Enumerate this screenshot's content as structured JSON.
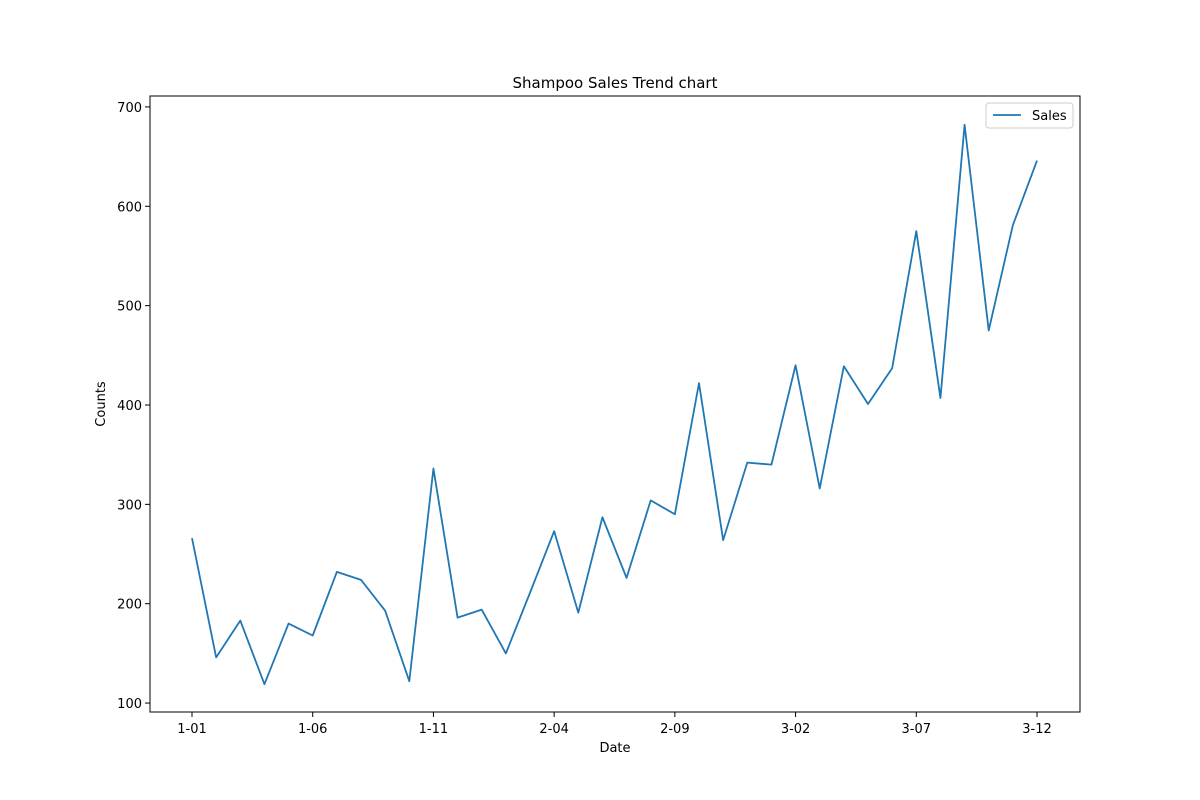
{
  "chart_data": {
    "type": "line",
    "title": "Shampoo Sales Trend chart",
    "xlabel": "Date",
    "ylabel": "Counts",
    "x": [
      "1-01",
      "1-02",
      "1-03",
      "1-04",
      "1-05",
      "1-06",
      "1-07",
      "1-08",
      "1-09",
      "1-10",
      "1-11",
      "1-12",
      "2-01",
      "2-02",
      "2-03",
      "2-04",
      "2-05",
      "2-06",
      "2-07",
      "2-08",
      "2-09",
      "2-10",
      "2-11",
      "2-12",
      "3-01",
      "3-02",
      "3-03",
      "3-04",
      "3-05",
      "3-06",
      "3-07",
      "3-08",
      "3-09",
      "3-10",
      "3-11",
      "3-12"
    ],
    "x_tick_labels": [
      "1-01",
      "1-06",
      "1-11",
      "2-04",
      "2-09",
      "3-02",
      "3-07",
      "3-12"
    ],
    "series": [
      {
        "name": "Sales",
        "color": "#1f77b4",
        "values": [
          266,
          146,
          183,
          119,
          180,
          168,
          232,
          224,
          193,
          122,
          336,
          186,
          194,
          150,
          211,
          273,
          191,
          287,
          226,
          304,
          290,
          422,
          264,
          342,
          340,
          440,
          316,
          439,
          401,
          437,
          575,
          407,
          682,
          475,
          581,
          646
        ]
      }
    ],
    "ylim": [
      91,
      711
    ],
    "yticks": [
      100,
      200,
      300,
      400,
      500,
      600,
      700
    ],
    "grid": false,
    "legend": "top-right"
  }
}
